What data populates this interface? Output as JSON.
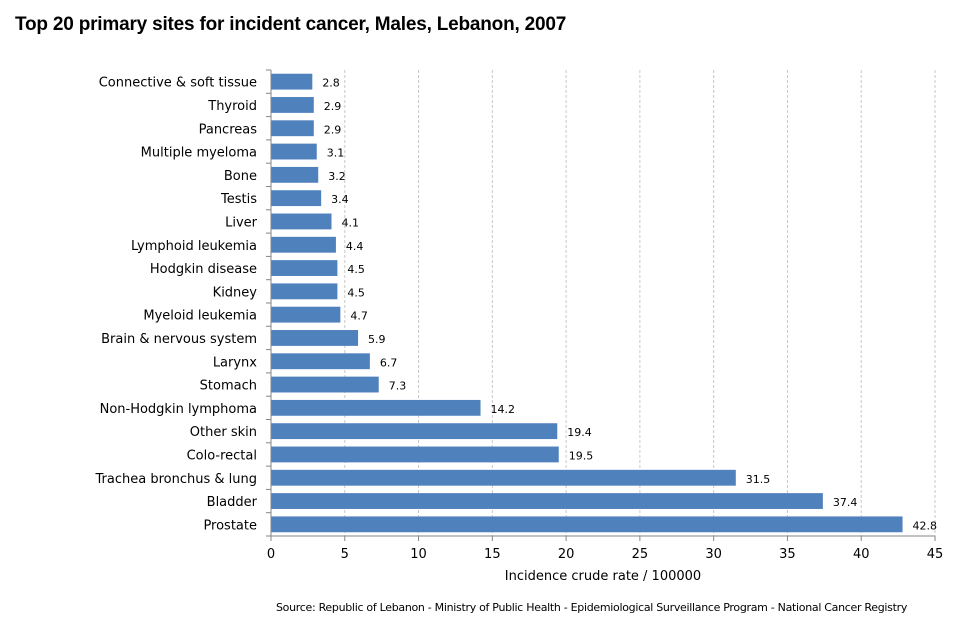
{
  "chart_data": {
    "type": "bar",
    "orientation": "horizontal",
    "title": "Top 20 primary sites for incident cancer, Males, Lebanon, 2007",
    "xlabel": "Incidence crude rate / 100000",
    "ylabel": "",
    "xlim": [
      0,
      45
    ],
    "xticks": [
      0,
      5,
      10,
      15,
      20,
      25,
      30,
      35,
      40,
      45
    ],
    "grid": "vertical-dashed",
    "bar_color": "#4F81BD",
    "categories": [
      "Connective & soft tissue",
      "Thyroid",
      "Pancreas",
      "Multiple myeloma",
      "Bone",
      "Testis",
      "Liver",
      "Lymphoid leukemia",
      "Hodgkin disease",
      "Kidney",
      "Myeloid leukemia",
      "Brain & nervous system",
      "Larynx",
      "Stomach",
      "Non-Hodgkin lymphoma",
      "Other skin",
      "Colo-rectal",
      "Trachea bronchus & lung",
      "Bladder",
      "Prostate"
    ],
    "values": [
      2.8,
      2.9,
      2.9,
      3.1,
      3.2,
      3.4,
      4.1,
      4.4,
      4.5,
      4.5,
      4.7,
      5.9,
      6.7,
      7.3,
      14.2,
      19.4,
      19.5,
      31.5,
      37.4,
      42.8
    ],
    "value_labels": [
      "2.8",
      "2.9",
      "2.9",
      "3.1",
      "3.2",
      "3.4",
      "4.1",
      "4.4",
      "4.5",
      "4.5",
      "4.7",
      "5.9",
      "6.7",
      "7.3",
      "14.2",
      "19.4",
      "19.5",
      "31.5",
      "37.4",
      "42.8"
    ]
  },
  "source": "Source:  Republic of Lebanon  - Ministry of Public Health - Epidemiological Surveillance Program - National Cancer Registry"
}
